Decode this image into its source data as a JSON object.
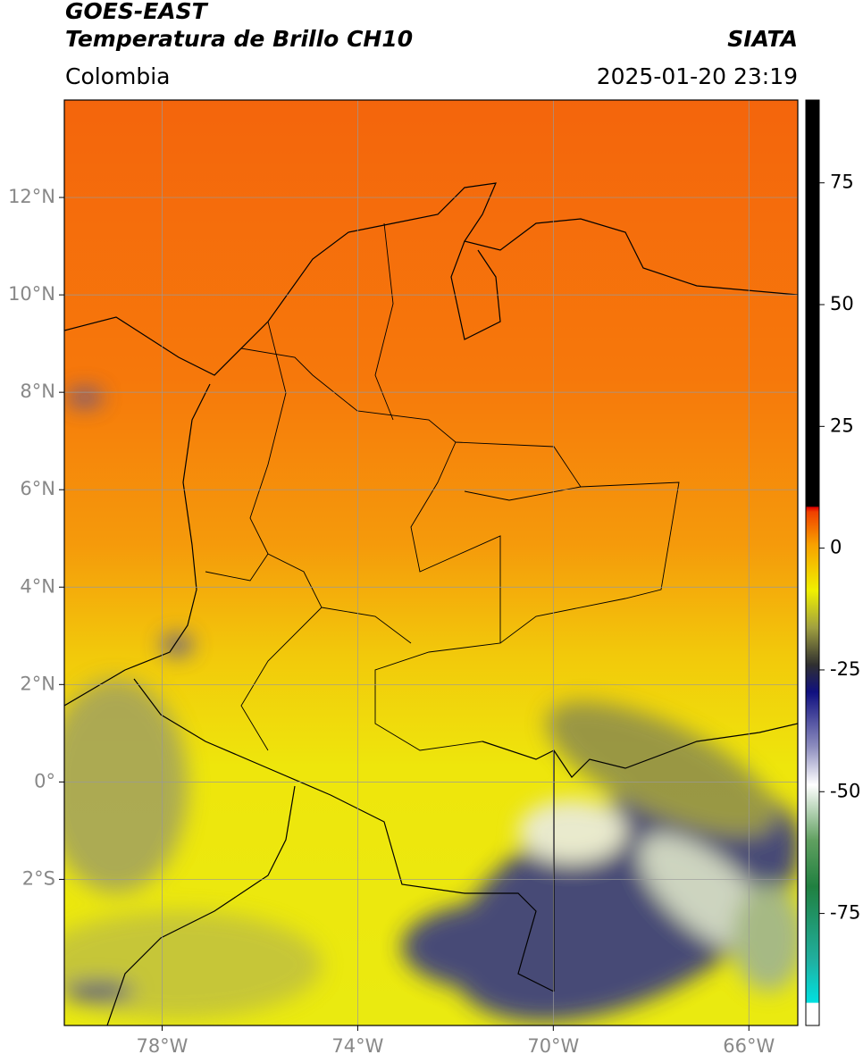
{
  "header": {
    "satellite": "GOES-EAST",
    "product": "Temperatura de Brillo CH10",
    "region": "Colombia",
    "source": "SIATA",
    "timestamp": "2025-01-20 23:19"
  },
  "map": {
    "xlim": [
      -80,
      -65
    ],
    "ylim": [
      -5,
      14
    ],
    "xticks": [
      {
        "value": -78,
        "label": "78°W"
      },
      {
        "value": -74,
        "label": "74°W"
      },
      {
        "value": -70,
        "label": "70°W"
      },
      {
        "value": -66,
        "label": "66°W"
      }
    ],
    "yticks": [
      {
        "value": 12,
        "label": "12°N"
      },
      {
        "value": 10,
        "label": "10°N"
      },
      {
        "value": 8,
        "label": "8°N"
      },
      {
        "value": 6,
        "label": "6°N"
      },
      {
        "value": 4,
        "label": "4°N"
      },
      {
        "value": 2,
        "label": "2°N"
      },
      {
        "value": 0,
        "label": "0°"
      },
      {
        "value": -2,
        "label": "2°S"
      }
    ],
    "grid": true
  },
  "colorbar": {
    "lim": [
      -98,
      92
    ],
    "ticks": [
      75,
      50,
      25,
      0,
      -25,
      -50,
      -75
    ]
  }
}
